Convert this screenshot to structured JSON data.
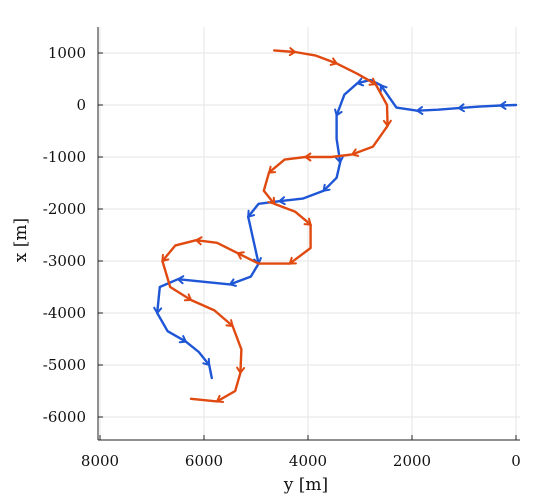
{
  "chart_data": {
    "type": "line",
    "title": "",
    "xlabel": "y [m]",
    "ylabel": "x [m]",
    "x_reversed": true,
    "xlim": [
      8000,
      0
    ],
    "ylim": [
      -6500,
      1500
    ],
    "xticks": [
      8000,
      6000,
      4000,
      2000,
      0
    ],
    "yticks": [
      1000,
      0,
      -1000,
      -2000,
      -3000,
      -4000,
      -5000,
      -6000
    ],
    "grid": true,
    "legend": "none",
    "series": [
      {
        "color": "#1e56d6",
        "points": [
          [
            0,
            0
          ],
          [
            300,
            -10
          ],
          [
            700,
            -30
          ],
          [
            1100,
            -60
          ],
          [
            1500,
            -90
          ],
          [
            1900,
            -110
          ],
          [
            2300,
            -50
          ],
          [
            2600,
            380
          ],
          [
            2800,
            480
          ],
          [
            3050,
            420
          ],
          [
            3300,
            200
          ],
          [
            3450,
            -200
          ],
          [
            3450,
            -650
          ],
          [
            3380,
            -1100
          ],
          [
            3450,
            -1400
          ],
          [
            3700,
            -1650
          ],
          [
            4100,
            -1800
          ],
          [
            4550,
            -1850
          ],
          [
            4950,
            -1900
          ],
          [
            5150,
            -2150
          ],
          [
            5050,
            -2600
          ],
          [
            4950,
            -3050
          ],
          [
            5100,
            -3300
          ],
          [
            5500,
            -3450
          ],
          [
            6000,
            -3400
          ],
          [
            6500,
            -3350
          ],
          [
            6850,
            -3500
          ],
          [
            6900,
            -4000
          ],
          [
            6700,
            -4350
          ],
          [
            6350,
            -4550
          ],
          [
            6100,
            -4750
          ],
          [
            5900,
            -5000
          ],
          [
            5850,
            -5250
          ]
        ]
      },
      {
        "color": "#e04a10",
        "points": [
          [
            4650,
            1050
          ],
          [
            4250,
            1020
          ],
          [
            3850,
            950
          ],
          [
            3450,
            800
          ],
          [
            3050,
            600
          ],
          [
            2700,
            400
          ],
          [
            2480,
            0
          ],
          [
            2470,
            -400
          ],
          [
            2750,
            -800
          ],
          [
            3150,
            -950
          ],
          [
            3550,
            -1000
          ],
          [
            4050,
            -1000
          ],
          [
            4450,
            -1050
          ],
          [
            4750,
            -1300
          ],
          [
            4850,
            -1650
          ],
          [
            4650,
            -1900
          ],
          [
            4250,
            -2050
          ],
          [
            3950,
            -2300
          ],
          [
            3950,
            -2750
          ],
          [
            4350,
            -3050
          ],
          [
            4950,
            -3050
          ],
          [
            5350,
            -2850
          ],
          [
            5750,
            -2650
          ],
          [
            6150,
            -2600
          ],
          [
            6550,
            -2700
          ],
          [
            6800,
            -3000
          ],
          [
            6650,
            -3500
          ],
          [
            6250,
            -3750
          ],
          [
            5800,
            -3950
          ],
          [
            5450,
            -4250
          ],
          [
            5280,
            -4700
          ],
          [
            5300,
            -5150
          ],
          [
            5400,
            -5500
          ],
          [
            5750,
            -5700
          ],
          [
            6250,
            -5650
          ]
        ]
      }
    ]
  }
}
